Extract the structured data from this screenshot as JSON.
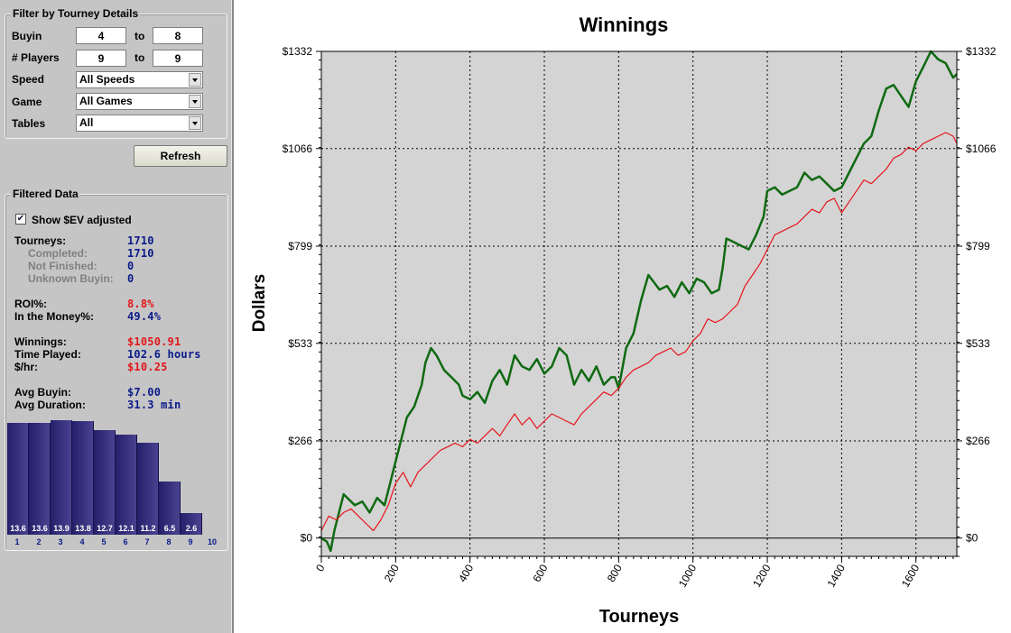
{
  "filter": {
    "title": "Filter by Tourney Details",
    "buyin_label": "Buyin",
    "buyin_from": "4",
    "buyin_to": "8",
    "players_label": "# Players",
    "players_from": "9",
    "players_to": "9",
    "to_label": "to",
    "speed_label": "Speed",
    "speed_value": "All Speeds",
    "game_label": "Game",
    "game_value": "All Games",
    "tables_label": "Tables",
    "tables_value": "All"
  },
  "refresh_label": "Refresh",
  "filtered": {
    "title": "Filtered Data",
    "show_ev_label": "Show $EV adjusted",
    "show_ev_checked": true,
    "tourneys_label": "Tourneys:",
    "tourneys": "1710",
    "completed_label": "Completed:",
    "completed": "1710",
    "not_finished_label": "Not Finished:",
    "not_finished": "0",
    "unknown_buyin_label": "Unknown Buyin:",
    "unknown_buyin": "0",
    "roi_label": "ROI%:",
    "roi": "8.8%",
    "itm_label": "In the Money%:",
    "itm": "49.4%",
    "winnings_label": "Winnings:",
    "winnings": "$1050.91",
    "time_played_label": "Time Played:",
    "time_played": "102.6 hours",
    "per_hour_label": "$/hr:",
    "per_hour": "$10.25",
    "avg_buyin_label": "Avg Buyin:",
    "avg_buyin": "$7.00",
    "avg_duration_label": "Avg Duration:",
    "avg_duration": "31.3 min"
  },
  "colors": {
    "value_blue": "#0a1a8a",
    "value_red": "#e2161b",
    "green_line": "#0f6a12",
    "red_line": "#e8141c",
    "plot_bg": "#d4d4d4"
  },
  "histogram": {
    "positions": [
      "1",
      "2",
      "3",
      "4",
      "5",
      "6",
      "7",
      "8",
      "9",
      "10"
    ],
    "values": [
      13.6,
      13.6,
      13.9,
      13.8,
      12.7,
      12.1,
      11.2,
      6.5,
      2.6,
      null
    ],
    "labels": [
      "13.6",
      "13.6",
      "13.9",
      "13.8",
      "12.7",
      "12.1",
      "11.2",
      "6.5",
      "2.6",
      ""
    ]
  },
  "chart_data": {
    "type": "line",
    "title": "Winnings",
    "xlabel": "Tourneys",
    "ylabel": "Dollars",
    "xlim": [
      0,
      1710
    ],
    "ylim": [
      -50,
      1332
    ],
    "x_ticks": [
      0,
      200,
      400,
      600,
      800,
      1000,
      1200,
      1400,
      1600
    ],
    "x_tick_labels": [
      "0",
      "200",
      "400",
      "600",
      "800",
      "1000",
      "1200",
      "1400",
      "1600"
    ],
    "y_ticks": [
      0,
      266,
      533,
      799,
      1066,
      1332
    ],
    "y_tick_labels": [
      "$0",
      "$266",
      "$533",
      "$799",
      "$1066",
      "$1332"
    ],
    "grid": true,
    "series": [
      {
        "color": "#0f6a12",
        "x": [
          0,
          15,
          25,
          35,
          50,
          60,
          70,
          90,
          110,
          130,
          150,
          170,
          180,
          200,
          210,
          230,
          250,
          270,
          280,
          295,
          310,
          330,
          350,
          370,
          380,
          400,
          420,
          440,
          460,
          480,
          500,
          520,
          540,
          560,
          580,
          600,
          620,
          640,
          660,
          680,
          700,
          720,
          740,
          760,
          780,
          790,
          800,
          820,
          840,
          860,
          880,
          895,
          910,
          930,
          950,
          970,
          990,
          1010,
          1030,
          1050,
          1070,
          1080,
          1090,
          1110,
          1130,
          1150,
          1170,
          1190,
          1200,
          1220,
          1240,
          1260,
          1280,
          1300,
          1320,
          1340,
          1360,
          1380,
          1400,
          1420,
          1440,
          1460,
          1480,
          1500,
          1520,
          1540,
          1560,
          1580,
          1600,
          1620,
          1640,
          1660,
          1680,
          1700,
          1710
        ],
        "y": [
          0,
          -10,
          -35,
          20,
          80,
          120,
          110,
          90,
          100,
          70,
          110,
          90,
          130,
          210,
          250,
          330,
          360,
          420,
          480,
          520,
          500,
          460,
          440,
          420,
          390,
          380,
          400,
          370,
          430,
          460,
          420,
          500,
          470,
          460,
          490,
          450,
          470,
          520,
          500,
          420,
          460,
          430,
          470,
          420,
          440,
          440,
          410,
          520,
          560,
          650,
          720,
          700,
          680,
          690,
          660,
          700,
          670,
          710,
          700,
          670,
          680,
          740,
          820,
          810,
          800,
          790,
          830,
          880,
          950,
          960,
          940,
          950,
          960,
          1000,
          980,
          990,
          970,
          950,
          960,
          1000,
          1040,
          1080,
          1100,
          1170,
          1230,
          1240,
          1210,
          1180,
          1250,
          1290,
          1332,
          1310,
          1300,
          1260,
          1270
        ]
      },
      {
        "color": "#e8141c",
        "x": [
          0,
          20,
          40,
          60,
          80,
          100,
          120,
          140,
          160,
          180,
          200,
          220,
          240,
          260,
          280,
          300,
          320,
          340,
          360,
          380,
          400,
          420,
          440,
          460,
          480,
          500,
          520,
          540,
          560,
          580,
          600,
          620,
          640,
          660,
          680,
          700,
          720,
          740,
          760,
          780,
          800,
          820,
          840,
          860,
          880,
          900,
          920,
          940,
          960,
          980,
          1000,
          1020,
          1040,
          1060,
          1080,
          1100,
          1120,
          1140,
          1160,
          1180,
          1200,
          1220,
          1240,
          1260,
          1280,
          1300,
          1320,
          1340,
          1360,
          1380,
          1400,
          1420,
          1440,
          1460,
          1480,
          1500,
          1520,
          1540,
          1560,
          1580,
          1600,
          1620,
          1640,
          1660,
          1680,
          1700,
          1710
        ],
        "y": [
          20,
          60,
          50,
          70,
          80,
          60,
          40,
          20,
          50,
          90,
          150,
          180,
          140,
          180,
          200,
          220,
          240,
          250,
          260,
          250,
          270,
          260,
          280,
          300,
          280,
          310,
          340,
          310,
          330,
          300,
          320,
          340,
          330,
          320,
          310,
          340,
          360,
          380,
          400,
          390,
          410,
          440,
          460,
          470,
          480,
          500,
          510,
          520,
          500,
          510,
          540,
          560,
          600,
          590,
          600,
          620,
          640,
          690,
          720,
          750,
          790,
          830,
          840,
          850,
          860,
          880,
          900,
          890,
          920,
          930,
          890,
          920,
          950,
          980,
          970,
          990,
          1010,
          1040,
          1050,
          1070,
          1060,
          1080,
          1090,
          1100,
          1110,
          1100,
          1080
        ]
      }
    ]
  }
}
